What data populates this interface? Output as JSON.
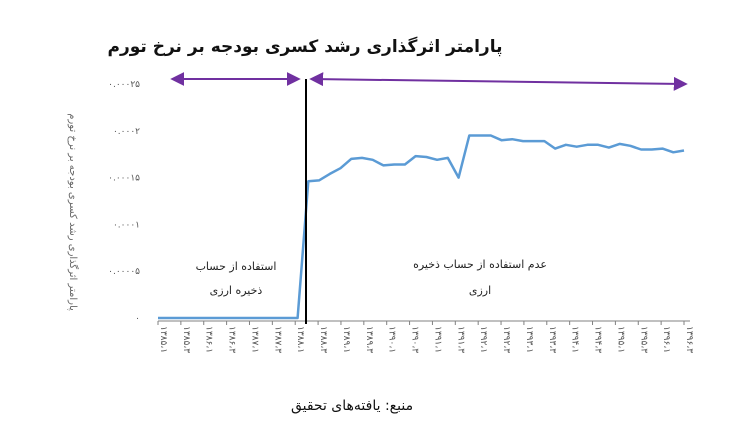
{
  "chart_data": {
    "type": "line",
    "title": "پارامتر اثرگذاری رشد کسری بودجه بر نرخ تورم",
    "ylabel": "پارامتر اثرگذاری رشد کسری بودجه بر نرخ تورم",
    "xlabel": "",
    "source": "منبع: یافته‌های تحقیق",
    "ylim": [
      0,
      0.00025
    ],
    "yticks": [
      0,
      5e-05,
      0.0001,
      0.00015,
      0.0002,
      0.00025
    ],
    "ytick_labels": [
      "۰",
      "۰.۰۰۰۰۵",
      "۰.۰۰۰۱",
      "۰.۰۰۰۱۵",
      "۰.۰۰۰۲",
      "۰.۰۰۰۲۵"
    ],
    "x_tick_labels": [
      "۱۳۸۵،۱",
      "۱۳۸۵،۳",
      "۱۳۸۶،۱",
      "۱۳۸۶،۳",
      "۱۳۸۷،۱",
      "۱۳۸۷،۳",
      "۱۳۸۸،۱",
      "۱۳۸۸،۳",
      "۱۳۸۹،۱",
      "۱۳۸۹،۳",
      "۱۳۹۰،۱",
      "۱۳۹۰،۳",
      "۱۳۹۱،۱",
      "۱۳۹۱،۳",
      "۱۳۹۲،۱",
      "۱۳۹۲،۳",
      "۱۳۹۳،۱",
      "۱۳۹۳،۳",
      "۱۳۹۴،۱",
      "۱۳۹۴،۳",
      "۱۳۹۵،۱",
      "۱۳۹۵،۳",
      "۱۳۹۶،۱",
      "۱۳۹۶،۳"
    ],
    "series": [
      {
        "color": "#5b9bd5",
        "values": [
          0,
          0,
          0,
          0,
          0,
          0,
          0,
          0,
          0,
          0,
          0,
          0,
          0,
          0,
          0.000146,
          0.000147,
          0.000154,
          0.00016,
          0.00017,
          0.000171,
          0.000169,
          0.000163,
          0.000164,
          0.000164,
          0.000173,
          0.000172,
          0.000169,
          0.000171,
          0.00015,
          0.000195,
          0.000195,
          0.000195,
          0.00019,
          0.000191,
          0.000189,
          0.000189,
          0.000189,
          0.000181,
          0.000185,
          0.000183,
          0.000185,
          0.000185,
          0.000182,
          0.000186,
          0.000184,
          0.00018,
          0.00018,
          0.000181,
          0.000177,
          0.000179
        ]
      }
    ],
    "annotations": {
      "left_line1": "استفاده از حساب",
      "left_line2": "ذخیره ارزی",
      "right_line1": "عدم استفاده از حساب ذخیره",
      "right_line2": "ارزی"
    },
    "colors": {
      "arrow": "#7030a0",
      "divider": "#000000",
      "axis": "#808080"
    },
    "grid": false
  }
}
